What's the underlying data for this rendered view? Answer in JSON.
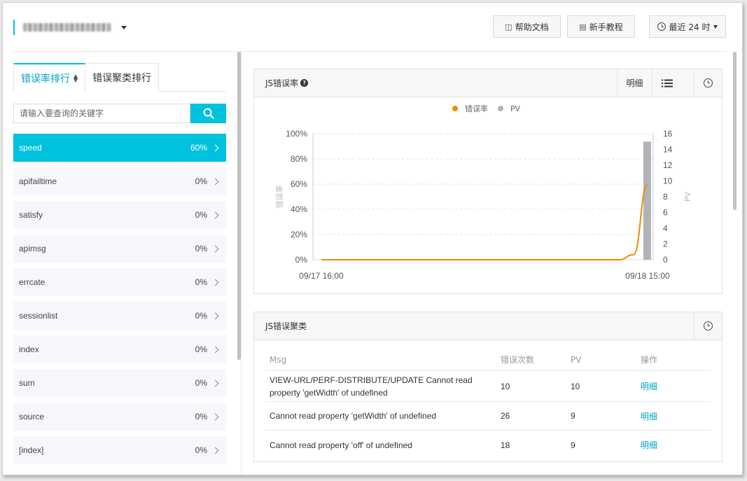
{
  "header": {
    "app_name_redacted": true,
    "help_docs": "帮助文档",
    "tutorial": "新手教程",
    "time_range": "最近 24 时"
  },
  "left": {
    "tabs": [
      {
        "label": "错误率排行",
        "active": true
      },
      {
        "label": "错误聚类排行",
        "active": false
      }
    ],
    "search_placeholder": "请输入要查询的关键字",
    "items": [
      {
        "name": "speed",
        "pct": "60%",
        "active": true
      },
      {
        "name": "apifailtime",
        "pct": "0%"
      },
      {
        "name": "satisfy",
        "pct": "0%"
      },
      {
        "name": "apimsg",
        "pct": "0%"
      },
      {
        "name": "errcate",
        "pct": "0%"
      },
      {
        "name": "sessionlist",
        "pct": "0%"
      },
      {
        "name": "index",
        "pct": "0%"
      },
      {
        "name": "sum",
        "pct": "0%"
      },
      {
        "name": "source",
        "pct": "0%"
      },
      {
        "name": "[index]",
        "pct": "0%"
      }
    ]
  },
  "rate_card": {
    "title": "JS错误率",
    "detail": "明细"
  },
  "cluster_card": {
    "title": "JS错误聚类",
    "columns": [
      "Msg",
      "错误次数",
      "PV",
      "操作"
    ],
    "rows": [
      {
        "msg": "VIEW-URL/PERF-DISTRIBUTE/UPDATE Cannot read property 'getWidth' of undefined",
        "count": "10",
        "pv": "10",
        "action": "明细"
      },
      {
        "msg": "Cannot read property 'getWidth' of undefined",
        "count": "26",
        "pv": "9",
        "action": "明细"
      },
      {
        "msg": "Cannot read property 'off' of undefined",
        "count": "18",
        "pv": "9",
        "action": "明细"
      }
    ]
  },
  "colors": {
    "accent": "#00c1de",
    "error_rate_line": "#f08c00",
    "pv_bar": "#b0b3b8"
  },
  "chart_data": {
    "type": "line",
    "series": [
      {
        "name": "错误率",
        "axis": "left",
        "type": "line",
        "color": "#f08c00",
        "x": [
          "09/17 16:00",
          "09/18 12:00",
          "09/18 13:00",
          "09/18 14:00",
          "09/18 15:00"
        ],
        "values": [
          0,
          0,
          0,
          4,
          60
        ]
      },
      {
        "name": "PV",
        "axis": "right",
        "type": "bar",
        "color": "#b0b3b8",
        "x": [
          "09/18 15:00"
        ],
        "values": [
          15
        ]
      }
    ],
    "x_tick_labels": [
      "09/17 16:00",
      "09/18 15:00"
    ],
    "ylabel": "错误率",
    "y2label": "PV",
    "ylim": [
      0,
      100
    ],
    "yticks": [
      "0%",
      "20%",
      "40%",
      "60%",
      "80%",
      "100%"
    ],
    "y2lim": [
      0,
      16
    ],
    "y2ticks": [
      "0",
      "2",
      "4",
      "6",
      "8",
      "10",
      "12",
      "14",
      "16"
    ],
    "legend": "top-center",
    "grid": true
  }
}
